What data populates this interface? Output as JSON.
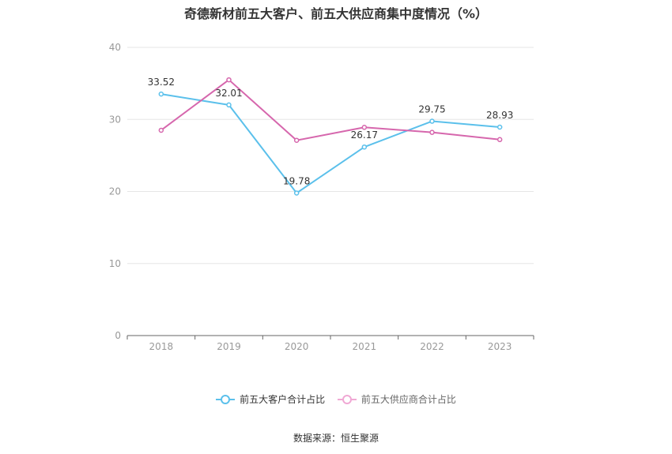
{
  "title": "奇德新材前五大客户、前五大供应商集中度情况（%）",
  "source": "数据来源：恒生聚源",
  "chart_data": {
    "type": "line",
    "categories": [
      "2018",
      "2019",
      "2020",
      "2021",
      "2022",
      "2023"
    ],
    "ylim": [
      0,
      40
    ],
    "yticks": [
      0,
      10,
      20,
      30,
      40
    ],
    "grid": true,
    "legend_position": "bottom",
    "series": [
      {
        "name": "前五大客户合计占比",
        "color": "#5bc0eb",
        "values": [
          33.52,
          32.01,
          19.78,
          26.17,
          29.75,
          28.93
        ],
        "labels": [
          "33.52",
          "32.01",
          "19.78",
          "26.17",
          "29.75",
          "28.93"
        ]
      },
      {
        "name": "前五大供应商合计占比",
        "color": "#d667ad",
        "values": [
          28.5,
          35.5,
          27.1,
          28.9,
          28.2,
          27.2
        ],
        "labels": []
      }
    ]
  }
}
